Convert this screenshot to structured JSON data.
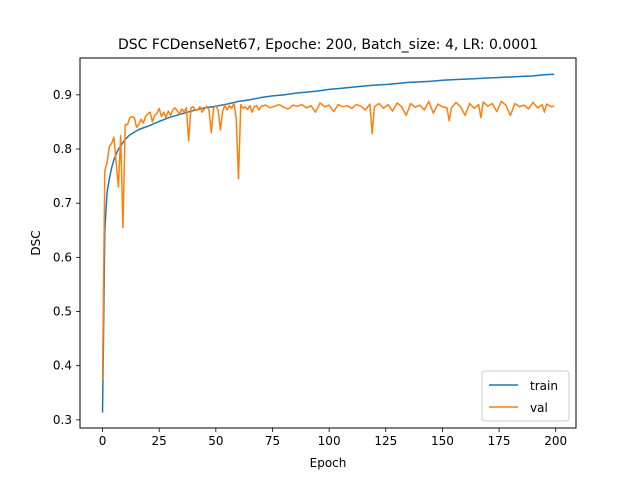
{
  "chart_data": {
    "type": "line",
    "title": "DSC FCDenseNet67, Epoche: 200, Batch_size: 4, LR: 0.0001",
    "xlabel": "Epoch",
    "ylabel": "DSC",
    "xlim": [
      -9.95,
      208.95
    ],
    "ylim": [
      0.285,
      0.968
    ],
    "xticks": [
      0,
      25,
      50,
      75,
      100,
      125,
      150,
      175,
      200
    ],
    "yticks": [
      0.3,
      0.4,
      0.5,
      0.6,
      0.7,
      0.8,
      0.9
    ],
    "ytick_labels": [
      "0.3",
      "0.4",
      "0.5",
      "0.6",
      "0.7",
      "0.8",
      "0.9"
    ],
    "grid": false,
    "legend_position": "lower-right",
    "series": [
      {
        "name": "train",
        "color": "#1f77b4",
        "x": [
          0,
          1,
          2,
          3,
          4,
          5,
          6,
          7,
          8,
          9,
          10,
          12,
          14,
          16,
          18,
          20,
          25,
          30,
          35,
          40,
          45,
          50,
          55,
          60,
          65,
          70,
          75,
          80,
          85,
          90,
          95,
          100,
          105,
          110,
          115,
          120,
          125,
          130,
          135,
          140,
          145,
          150,
          155,
          160,
          165,
          170,
          175,
          180,
          185,
          190,
          195,
          199
        ],
        "y": [
          0.315,
          0.65,
          0.72,
          0.745,
          0.765,
          0.78,
          0.79,
          0.8,
          0.805,
          0.812,
          0.818,
          0.826,
          0.831,
          0.836,
          0.839,
          0.842,
          0.851,
          0.859,
          0.865,
          0.871,
          0.876,
          0.879,
          0.883,
          0.888,
          0.891,
          0.895,
          0.898,
          0.9,
          0.903,
          0.905,
          0.907,
          0.91,
          0.912,
          0.914,
          0.916,
          0.918,
          0.919,
          0.921,
          0.923,
          0.924,
          0.925,
          0.927,
          0.928,
          0.929,
          0.93,
          0.931,
          0.932,
          0.933,
          0.934,
          0.935,
          0.937,
          0.938
        ]
      },
      {
        "name": "val",
        "color": "#ff7f0e",
        "x": [
          0,
          1,
          2,
          3,
          4,
          5,
          6,
          7,
          8,
          9,
          10,
          11,
          12,
          13,
          14,
          15,
          16,
          17,
          18,
          19,
          20,
          21,
          22,
          23,
          24,
          25,
          26,
          27,
          28,
          29,
          30,
          31,
          32,
          33,
          34,
          35,
          36,
          37,
          38,
          39,
          40,
          41,
          42,
          43,
          44,
          45,
          46,
          47,
          48,
          49,
          50,
          51,
          52,
          53,
          54,
          55,
          56,
          57,
          58,
          59,
          60,
          61,
          62,
          63,
          64,
          65,
          66,
          67,
          68,
          69,
          70,
          72,
          74,
          76,
          78,
          80,
          82,
          84,
          86,
          88,
          90,
          92,
          94,
          96,
          98,
          100,
          102,
          104,
          106,
          108,
          110,
          112,
          114,
          116,
          118,
          119,
          120,
          122,
          124,
          126,
          128,
          130,
          132,
          134,
          136,
          138,
          140,
          142,
          144,
          146,
          148,
          150,
          152,
          153,
          154,
          156,
          158,
          160,
          162,
          164,
          166,
          167,
          168,
          170,
          172,
          174,
          176,
          178,
          180,
          182,
          184,
          186,
          188,
          190,
          192,
          194,
          195,
          196,
          198,
          199
        ],
        "y": [
          0.375,
          0.76,
          0.775,
          0.805,
          0.81,
          0.822,
          0.775,
          0.73,
          0.825,
          0.655,
          0.845,
          0.845,
          0.857,
          0.86,
          0.858,
          0.84,
          0.845,
          0.855,
          0.848,
          0.86,
          0.865,
          0.868,
          0.85,
          0.862,
          0.866,
          0.875,
          0.86,
          0.868,
          0.858,
          0.87,
          0.862,
          0.872,
          0.876,
          0.87,
          0.865,
          0.874,
          0.868,
          0.876,
          0.815,
          0.876,
          0.878,
          0.872,
          0.872,
          0.878,
          0.868,
          0.874,
          0.879,
          0.872,
          0.83,
          0.876,
          0.88,
          0.872,
          0.835,
          0.87,
          0.881,
          0.872,
          0.88,
          0.875,
          0.885,
          0.856,
          0.745,
          0.882,
          0.875,
          0.878,
          0.873,
          0.88,
          0.868,
          0.878,
          0.88,
          0.872,
          0.879,
          0.881,
          0.876,
          0.879,
          0.882,
          0.877,
          0.874,
          0.881,
          0.879,
          0.882,
          0.876,
          0.88,
          0.868,
          0.885,
          0.878,
          0.881,
          0.869,
          0.882,
          0.878,
          0.88,
          0.875,
          0.882,
          0.879,
          0.872,
          0.883,
          0.828,
          0.878,
          0.884,
          0.875,
          0.882,
          0.87,
          0.885,
          0.878,
          0.862,
          0.884,
          0.877,
          0.881,
          0.872,
          0.888,
          0.866,
          0.883,
          0.878,
          0.876,
          0.852,
          0.876,
          0.886,
          0.878,
          0.862,
          0.884,
          0.875,
          0.882,
          0.858,
          0.887,
          0.879,
          0.884,
          0.869,
          0.888,
          0.881,
          0.862,
          0.884,
          0.878,
          0.881,
          0.874,
          0.886,
          0.876,
          0.882,
          0.868,
          0.883,
          0.878,
          0.879
        ]
      }
    ]
  }
}
